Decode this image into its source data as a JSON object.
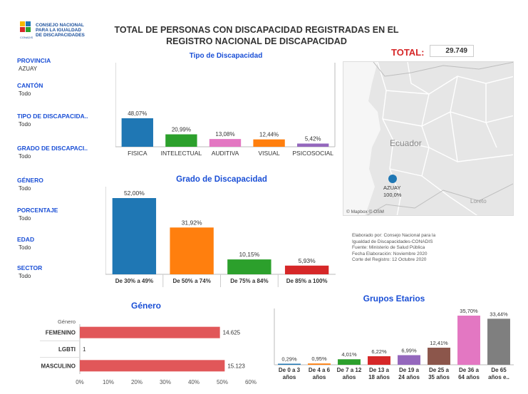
{
  "header": {
    "logo_line1": "CONSEJO NACIONAL",
    "logo_line2": "PARA LA IGUALDAD",
    "logo_line3": "DE DISCAPACIDADES",
    "logo_sub": "CONADIS",
    "title_line1": "TOTAL DE PERSONAS CON DISCAPACIDAD REGISTRADAS EN EL",
    "title_line2": "REGISTRO NACIONAL DE DISCAPACIDAD",
    "total_label": "TOTAL:",
    "total_value": "29.749"
  },
  "filters": [
    {
      "label": "PROVINCIA",
      "value": "AZUAY"
    },
    {
      "label": "CANTÓN",
      "value": "Todo"
    },
    {
      "label": "TIPO DE DISCAPACIDA..",
      "value": "Todo"
    },
    {
      "label": "GRADO DE DISCAPACI..",
      "value": "Todo"
    },
    {
      "label": "GÉNERO",
      "value": "Todo"
    },
    {
      "label": "PORCENTAJE",
      "value": "Todo"
    },
    {
      "label": "EDAD",
      "value": "Todo"
    },
    {
      "label": "SECTOR",
      "value": "Todo"
    }
  ],
  "map": {
    "country_label": "Ecuador",
    "marker_label": "AZUAY",
    "marker_value": "100,0%",
    "city_label": "Loreto",
    "attribution": "© Mapbox © OSM"
  },
  "credits": [
    "Elaborado por: Consejo Nacional para la",
    "Igualdad de Discapacidades-CONADIS",
    "Fuente: Ministerio de Salud Pública",
    "Fecha Elaboración: Noviembre 2020",
    "Corte del Registro: 12 Octubre 2020"
  ],
  "chart_data": [
    {
      "id": "tipo",
      "type": "bar",
      "title": "Tipo de Discapacidad",
      "categories": [
        "FISICA",
        "INTELECTUAL",
        "AUDITIVA",
        "VISUAL",
        "PSICOSOCIAL"
      ],
      "values": [
        48.07,
        20.99,
        13.08,
        12.44,
        5.42
      ],
      "labels": [
        "48,07%",
        "20,99%",
        "13,08%",
        "12,44%",
        "5,42%"
      ],
      "colors": [
        "#1f77b4",
        "#2ca02c",
        "#e377c2",
        "#ff7f0e",
        "#9467bd"
      ]
    },
    {
      "id": "grado",
      "type": "bar",
      "title": "Grado de Discapacidad",
      "categories": [
        "De 30% a 49%",
        "De 50% a 74%",
        "De 75% a 84%",
        "De 85% a 100%"
      ],
      "values": [
        52.0,
        31.92,
        10.15,
        5.93
      ],
      "labels": [
        "52,00%",
        "31,92%",
        "10,15%",
        "5,93%"
      ],
      "colors": [
        "#1f77b4",
        "#ff7f0e",
        "#2ca02c",
        "#d62728"
      ]
    },
    {
      "id": "genero",
      "type": "bar",
      "orientation": "horizontal",
      "title": "Género",
      "ylabel": "Género",
      "categories": [
        "FEMENINO",
        "LGBTI",
        "MASCULINO"
      ],
      "values": [
        49.16,
        0.0,
        50.84
      ],
      "labels": [
        "14.625",
        "1",
        "15.123"
      ],
      "xticks": [
        "0%",
        "10%",
        "20%",
        "30%",
        "40%",
        "50%",
        "60%"
      ],
      "xlim": [
        0,
        60
      ],
      "colors": [
        "#e15759"
      ]
    },
    {
      "id": "edad",
      "type": "bar",
      "title": "Grupos Etarios",
      "categories": [
        [
          "De 0 a 3",
          "años"
        ],
        [
          "De 4 a 6",
          "años"
        ],
        [
          "De 7 a 12",
          "años"
        ],
        [
          "De 13 a",
          "18 años"
        ],
        [
          "De 19 a",
          "24 años"
        ],
        [
          "De 25 a",
          "35 años"
        ],
        [
          "De 36 a",
          "64 años"
        ],
        [
          "De 65",
          "años e.."
        ]
      ],
      "values": [
        0.29,
        0.95,
        4.01,
        6.22,
        6.99,
        12.41,
        35.7,
        33.44
      ],
      "labels": [
        "0,29%",
        "0,95%",
        "4,01%",
        "6,22%",
        "6,99%",
        "12,41%",
        "35,70%",
        "33,44%"
      ],
      "colors": [
        "#1f77b4",
        "#ff7f0e",
        "#2ca02c",
        "#d62728",
        "#9467bd",
        "#8c564b",
        "#e377c2",
        "#7f7f7f"
      ]
    }
  ]
}
